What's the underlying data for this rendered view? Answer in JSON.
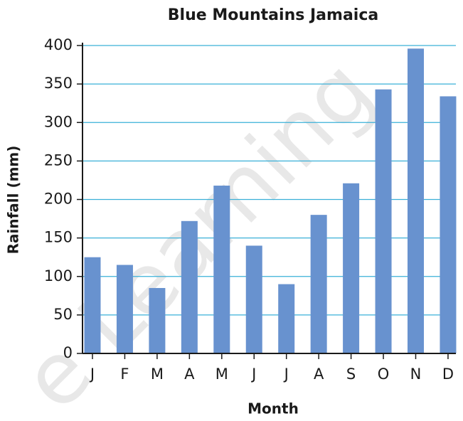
{
  "chart_data": {
    "type": "bar",
    "title": "Blue Mountains Jamaica",
    "watermark": "e Learning",
    "x_label": "Month",
    "y_label": "Rainfall (mm)",
    "categories": [
      "J",
      "F",
      "M",
      "A",
      "M",
      "J",
      "J",
      "A",
      "S",
      "O",
      "N",
      "D"
    ],
    "values": [
      125,
      115,
      85,
      172,
      218,
      140,
      90,
      180,
      221,
      343,
      396,
      334
    ],
    "color": "#6892cf",
    "grid_color": "#3ab0d8",
    "ylim": [
      0,
      400
    ],
    "yticks": [
      0,
      50,
      100,
      150,
      200,
      250,
      300,
      350,
      400
    ],
    "grid": true
  }
}
